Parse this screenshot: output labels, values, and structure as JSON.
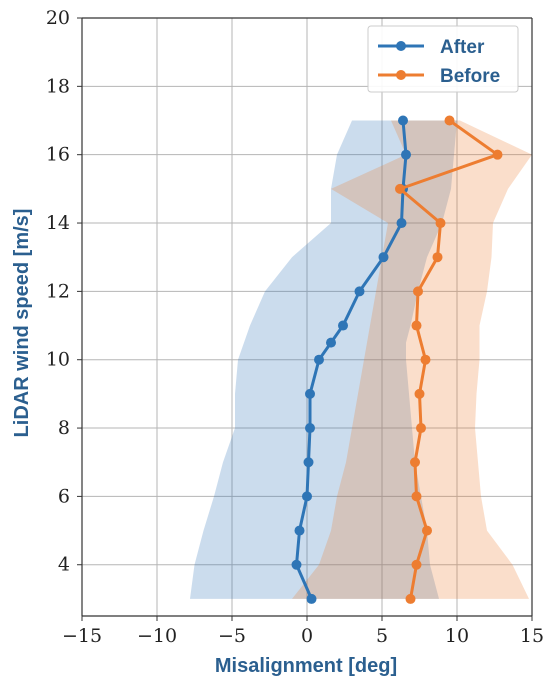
{
  "chart_data": {
    "type": "line",
    "xlabel": "Misalignment [deg]",
    "ylabel": "LiDAR wind speed [m/s]",
    "xlim": [
      -15,
      15
    ],
    "ylim": [
      2.5,
      20
    ],
    "xticks": [
      -15,
      -10,
      -5,
      0,
      5,
      10,
      15
    ],
    "yticks": [
      4,
      6,
      8,
      10,
      12,
      14,
      16,
      18,
      20
    ],
    "xtick_labels": [
      "−15",
      "−10",
      "−5",
      "0",
      "5",
      "10",
      "15"
    ],
    "ytick_labels": [
      "4",
      "6",
      "8",
      "10",
      "12",
      "14",
      "16",
      "18",
      "20"
    ],
    "grid": true,
    "legend_position": "top-right",
    "series": [
      {
        "name": "After",
        "color": "#2e75b6",
        "x": [
          0.3,
          -0.7,
          -0.5,
          0.0,
          0.1,
          0.2,
          0.2,
          0.8,
          1.6,
          2.4,
          3.5,
          5.1,
          6.3,
          6.4,
          6.6,
          6.4
        ],
        "y": [
          3,
          4,
          5,
          6,
          7,
          8,
          9,
          10,
          10.5,
          11,
          12,
          13,
          14,
          15,
          16,
          17
        ],
        "band_lower": [
          -7.8,
          -7.5,
          -6.9,
          -6.2,
          -5.6,
          -4.8,
          -4.8,
          -4.6,
          -4.2,
          -3.8,
          -2.8,
          -1.0,
          1.6,
          1.6,
          2.0,
          3.0
        ],
        "band_upper": [
          8.8,
          8.2,
          8.0,
          7.6,
          7.2,
          7.0,
          6.8,
          6.6,
          6.6,
          6.9,
          7.4,
          8.0,
          9.0,
          9.6,
          9.8,
          10.0
        ]
      },
      {
        "name": "Before",
        "color": "#ed7d31",
        "x": [
          6.9,
          7.3,
          8.0,
          7.3,
          7.2,
          7.6,
          7.5,
          7.9,
          7.3,
          7.4,
          8.7,
          8.9,
          6.2,
          12.7,
          9.5
        ],
        "y": [
          3,
          4,
          5,
          6,
          7,
          8,
          9,
          10,
          11,
          12,
          13,
          14,
          15,
          16,
          17
        ],
        "band_lower": [
          -1.0,
          0.8,
          1.6,
          2.0,
          2.6,
          3.0,
          3.4,
          3.8,
          4.2,
          4.6,
          5.0,
          5.4,
          1.6,
          6.6,
          5.6
        ],
        "band_upper": [
          14.8,
          13.7,
          12.0,
          11.6,
          11.4,
          11.2,
          11.3,
          11.5,
          11.5,
          12.0,
          12.3,
          12.4,
          13.4,
          15.0,
          10.2
        ]
      }
    ]
  }
}
